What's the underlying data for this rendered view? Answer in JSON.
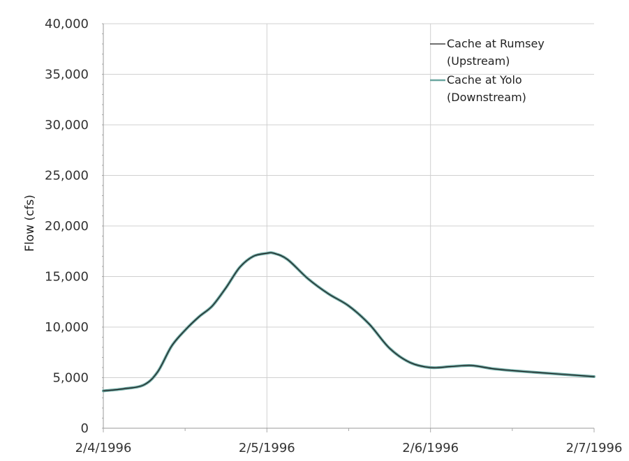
{
  "chart_data": {
    "type": "line",
    "title": "",
    "xlabel": "",
    "ylabel": "Flow (cfs)",
    "x_ticks": [
      "2/4/1996",
      "2/5/1996",
      "2/6/1996",
      "2/7/1996"
    ],
    "y_ticks": [
      "0",
      "5,000",
      "10,000",
      "15,000",
      "20,000",
      "25,000",
      "30,000",
      "35,000",
      "40,000"
    ],
    "ylim": [
      0,
      40000
    ],
    "xlim": [
      "2/4/1996 00:00",
      "2/7/1996 00:00"
    ],
    "grid": true,
    "legend_position": "top-right",
    "legend_entries": [
      "Cache at Rumsey (Upstream)",
      "Cache at Yolo (Downstream)"
    ],
    "series": [
      {
        "name": "Cache at Rumsey (Upstream)",
        "color": "#1a1a1a",
        "x": [
          "2/4/1996 00:00",
          "2/4/1996 03:00",
          "2/4/1996 06:00",
          "2/4/1996 08:00",
          "2/4/1996 10:00",
          "2/4/1996 12:00",
          "2/4/1996 14:00",
          "2/4/1996 16:00",
          "2/4/1996 18:00",
          "2/4/1996 20:00",
          "2/4/1996 22:00",
          "2/5/1996 00:00",
          "2/5/1996 01:00",
          "2/5/1996 03:00",
          "2/5/1996 06:00",
          "2/5/1996 09:00",
          "2/5/1996 12:00",
          "2/5/1996 15:00",
          "2/5/1996 18:00",
          "2/5/1996 21:00",
          "2/6/1996 00:00",
          "2/6/1996 03:00",
          "2/6/1996 06:00",
          "2/6/1996 09:00",
          "2/6/1996 12:00",
          "2/6/1996 18:00",
          "2/7/1996 00:00"
        ],
        "y": [
          3700,
          3900,
          4300,
          5600,
          8100,
          9700,
          11000,
          12100,
          13900,
          15900,
          17000,
          17300,
          17300,
          16700,
          14800,
          13300,
          12100,
          10300,
          7900,
          6500,
          6000,
          6100,
          6200,
          5900,
          5700,
          5400,
          5100
        ]
      },
      {
        "name": "Cache at Yolo (Downstream)",
        "color": "#6aa6a0",
        "x": [
          "2/4/1996 00:00",
          "2/4/1996 03:00",
          "2/4/1996 06:00",
          "2/4/1996 08:00",
          "2/4/1996 10:00",
          "2/4/1996 12:00",
          "2/4/1996 14:00",
          "2/4/1996 16:00",
          "2/4/1996 18:00",
          "2/4/1996 20:00",
          "2/4/1996 22:00",
          "2/5/1996 00:00",
          "2/5/1996 01:00",
          "2/5/1996 03:00",
          "2/5/1996 06:00",
          "2/5/1996 09:00",
          "2/5/1996 12:00",
          "2/5/1996 15:00",
          "2/5/1996 18:00",
          "2/5/1996 21:00",
          "2/6/1996 00:00",
          "2/6/1996 03:00",
          "2/6/1996 06:00",
          "2/6/1996 09:00",
          "2/6/1996 12:00",
          "2/6/1996 18:00",
          "2/7/1996 00:00"
        ],
        "y": [
          3700,
          3900,
          4300,
          5600,
          8100,
          9700,
          11000,
          12100,
          13900,
          15900,
          17000,
          17300,
          17300,
          16700,
          14800,
          13300,
          12100,
          10300,
          7900,
          6500,
          6000,
          6100,
          6200,
          5900,
          5700,
          5400,
          5100
        ]
      }
    ]
  }
}
